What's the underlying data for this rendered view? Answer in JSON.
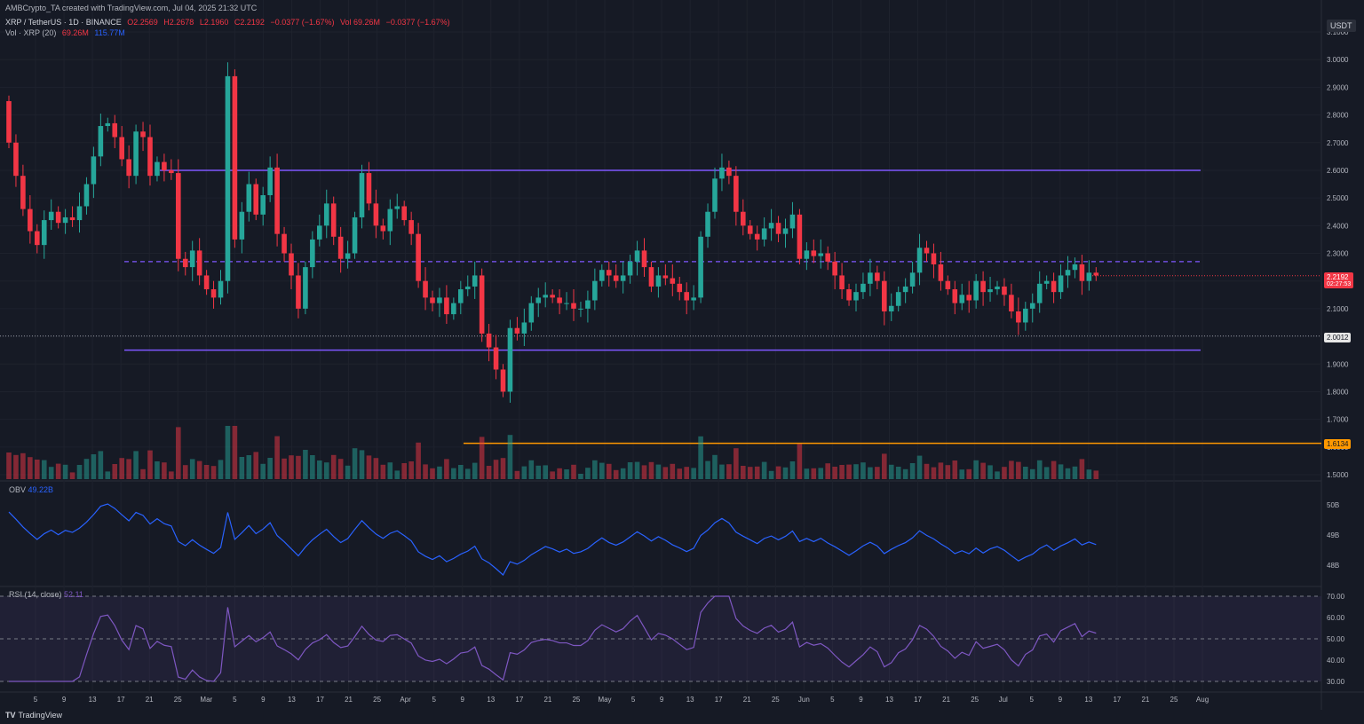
{
  "header": {
    "creator": "AMBCrypto_TA created with TradingView.com, Jul 04, 2025 21:32 UTC",
    "symbol": "XRP / TetherUS · 1D · BINANCE",
    "O": "O2.2569",
    "H": "H2.2678",
    "L": "L2.1960",
    "C": "C2.2192",
    "change": "−0.0377 (−1.67%)",
    "vol_label": "Vol 69.26M",
    "vol_change": "−0.0377 (−1.67%)",
    "vol_line_label": "Vol · XRP (20)",
    "vol_value": "69.26M",
    "vol_ma": "115.77M",
    "currency": "USDT"
  },
  "price_labels": {
    "current": "2.2192",
    "countdown": "02:27:53",
    "horizontal": "2.0012",
    "orange": "1.6134"
  },
  "obv_panel": {
    "label": "OBV",
    "value": "49.22B",
    "ticks": [
      "50B",
      "49B",
      "48B"
    ]
  },
  "rsi_panel": {
    "label": "RSI (14, close)",
    "value": "52.11",
    "ticks": [
      "70.00",
      "60.00",
      "50.00",
      "40.00",
      "30.00"
    ]
  },
  "brand": "TradingView",
  "chart_data": {
    "type": "candlestick",
    "y_ticks": [
      "3.1000",
      "3.0000",
      "2.9000",
      "2.8000",
      "2.7000",
      "2.6000",
      "2.5000",
      "2.4000",
      "2.3000",
      "2.2000",
      "2.1000",
      "2.0000",
      "1.9000",
      "1.8000",
      "1.7000",
      "1.6000",
      "1.5000"
    ],
    "ylim": [
      1.5,
      3.1
    ],
    "x_ticks": [
      "5",
      "9",
      "13",
      "17",
      "21",
      "25",
      "Mar",
      "5",
      "9",
      "13",
      "17",
      "21",
      "25",
      "Apr",
      "5",
      "9",
      "13",
      "17",
      "21",
      "25",
      "May",
      "5",
      "9",
      "13",
      "17",
      "21",
      "25",
      "Jun",
      "5",
      "9",
      "13",
      "17",
      "21",
      "25",
      "Jul",
      "5",
      "9",
      "13",
      "17",
      "21",
      "25",
      "Aug"
    ],
    "levels": {
      "range_high": 2.6,
      "range_mid": 2.27,
      "range_low": 1.95,
      "horizontal": 2.0012,
      "orange": 1.6134
    },
    "close": [
      2.7,
      2.58,
      2.46,
      2.38,
      2.33,
      2.42,
      2.45,
      2.41,
      2.43,
      2.42,
      2.47,
      2.55,
      2.65,
      2.76,
      2.77,
      2.72,
      2.64,
      2.58,
      2.74,
      2.72,
      2.58,
      2.63,
      2.6,
      2.59,
      2.28,
      2.25,
      2.31,
      2.22,
      2.17,
      2.14,
      2.2,
      2.94,
      2.35,
      2.45,
      2.55,
      2.44,
      2.51,
      2.61,
      2.37,
      2.3,
      2.22,
      2.1,
      2.25,
      2.35,
      2.4,
      2.48,
      2.36,
      2.28,
      2.3,
      2.43,
      2.59,
      2.48,
      2.4,
      2.38,
      2.46,
      2.47,
      2.42,
      2.37,
      2.2,
      2.14,
      2.12,
      2.14,
      2.08,
      2.12,
      2.17,
      2.18,
      2.22,
      2.01,
      1.96,
      1.88,
      1.8,
      2.03,
      2.01,
      2.05,
      2.12,
      2.14,
      2.15,
      2.14,
      2.12,
      2.12,
      2.1,
      2.1,
      2.13,
      2.2,
      2.24,
      2.22,
      2.2,
      2.22,
      2.27,
      2.31,
      2.25,
      2.18,
      2.22,
      2.21,
      2.19,
      2.16,
      2.13,
      2.14,
      2.36,
      2.45,
      2.57,
      2.61,
      2.58,
      2.45,
      2.4,
      2.37,
      2.35,
      2.39,
      2.41,
      2.37,
      2.39,
      2.44,
      2.28,
      2.31,
      2.29,
      2.3,
      2.27,
      2.22,
      2.17,
      2.13,
      2.16,
      2.19,
      2.23,
      2.2,
      2.09,
      2.11,
      2.16,
      2.18,
      2.23,
      2.32,
      2.3,
      2.26,
      2.2,
      2.17,
      2.12,
      2.15,
      2.13,
      2.2,
      2.16,
      2.17,
      2.18,
      2.15,
      2.09,
      2.05,
      2.1,
      2.12,
      2.19,
      2.2,
      2.16,
      2.22,
      2.24,
      2.26,
      2.2,
      2.23,
      2.22
    ],
    "volume_ma": "115.77M",
    "obv_range": [
      48,
      50
    ],
    "rsi_range": [
      30,
      70
    ]
  }
}
